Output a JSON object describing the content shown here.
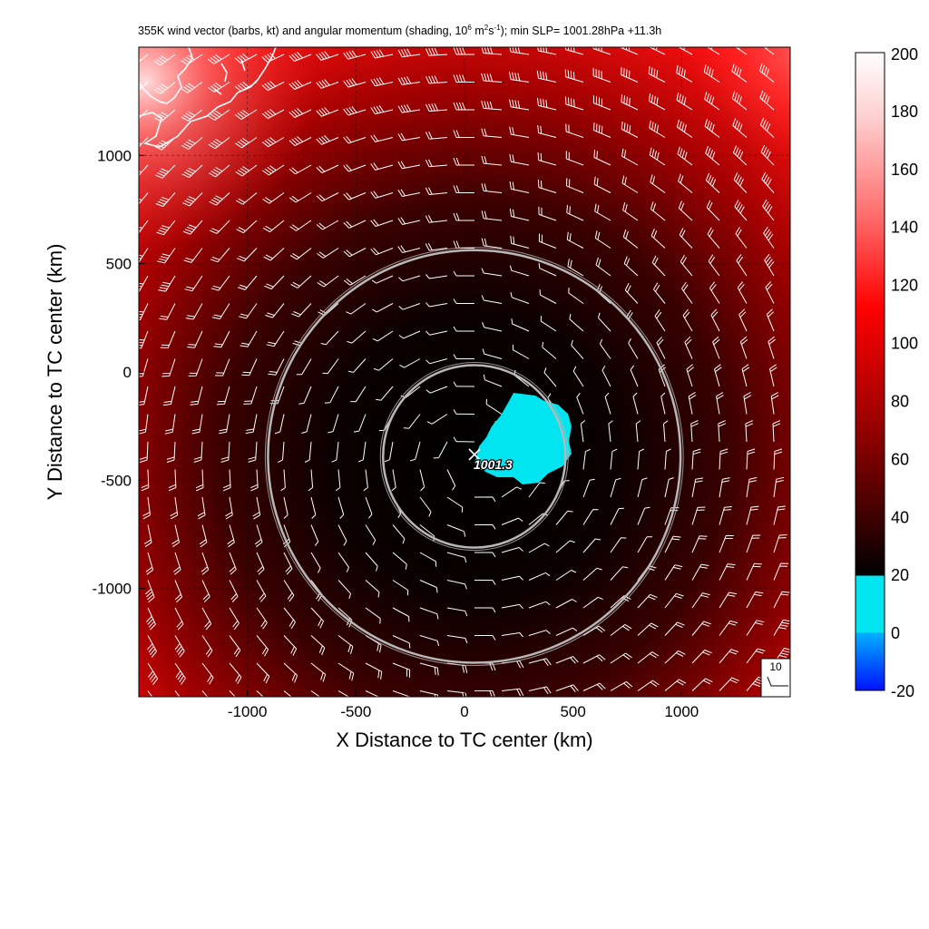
{
  "title": {
    "prefix": "355K wind vector (barbs, kt) and angular momentum (shading, 10",
    "exp1": "6",
    "unit_a": " m",
    "exp2": "2",
    "unit_b": "s",
    "exp3": "-1",
    "suffix": "); min SLP= 1001.28hPa  +11.3h"
  },
  "colors": {
    "min_color": "#00e5f0",
    "low": "#000000",
    "mid": "#b00000",
    "high": "#ff1a1a",
    "top": "#ffffff",
    "neg": "#0010ff",
    "ring": "#b8b8b8",
    "coast": "#ffffff",
    "barb": "#ffffff"
  },
  "chart_data": {
    "type": "heatmap",
    "xlabel": "X Distance to TC center (km)",
    "ylabel": "Y Distance to TC center (km)",
    "xlim": [
      -1500,
      1500
    ],
    "ylim": [
      -1500,
      1500
    ],
    "xticks": [
      -1000,
      -500,
      0,
      500,
      1000
    ],
    "yticks": [
      1000,
      500,
      0,
      -500,
      -1000
    ],
    "grid": true,
    "colorbar": {
      "ticks": [
        200,
        180,
        160,
        140,
        120,
        100,
        80,
        60,
        40,
        20,
        0,
        -20
      ],
      "range": [
        -20,
        200
      ]
    },
    "center": {
      "x": 45,
      "y": -390,
      "label": "1001.3"
    },
    "rings_radius_km": [
      420,
      950
    ],
    "ref_barb_label": "10",
    "shading_description_values": {
      "center_min": 0,
      "outer_max": 200
    }
  }
}
